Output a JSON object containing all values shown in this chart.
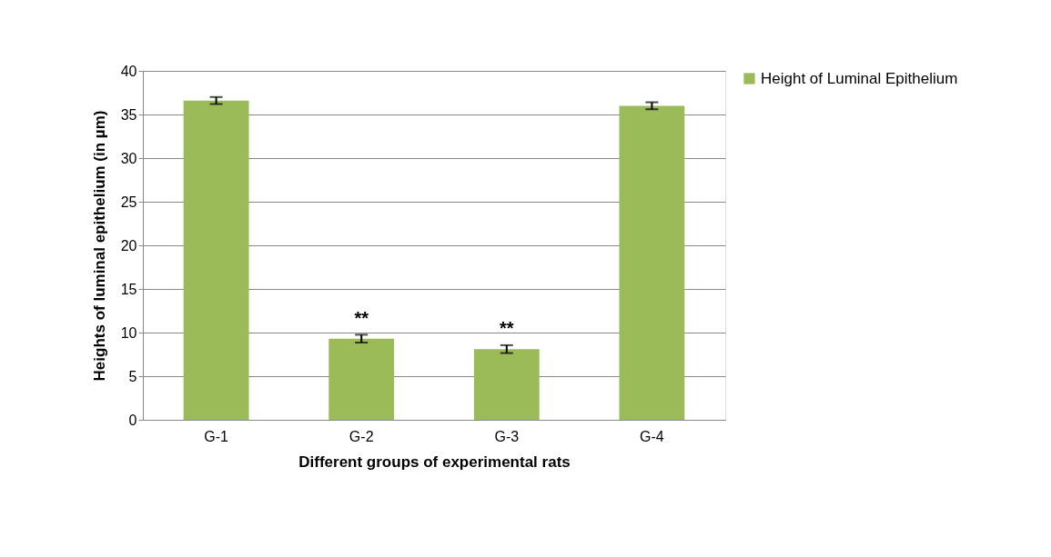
{
  "chart_data": {
    "type": "bar",
    "xlabel": "Different groups of  experimental rats",
    "ylabel": "Heights of luminal epithelium (in µm)",
    "categories": [
      "G-1",
      "G-2",
      "G-3",
      "G-4"
    ],
    "series": [
      {
        "name": "Height of Luminal Epithelium",
        "color": "#9bbb59",
        "values": [
          36.6,
          9.3,
          8.1,
          36.0
        ],
        "errors": [
          0.4,
          0.45,
          0.45,
          0.4
        ]
      }
    ],
    "ylim": [
      0,
      40
    ],
    "yticks": [
      0,
      5,
      10,
      15,
      20,
      25,
      30,
      35,
      40
    ],
    "grid": "y",
    "legend": "right",
    "annotations": [
      {
        "text": "**",
        "x": "G-2",
        "y": 9.3
      },
      {
        "text": "**",
        "x": "G-3",
        "y": 8.1
      }
    ]
  }
}
